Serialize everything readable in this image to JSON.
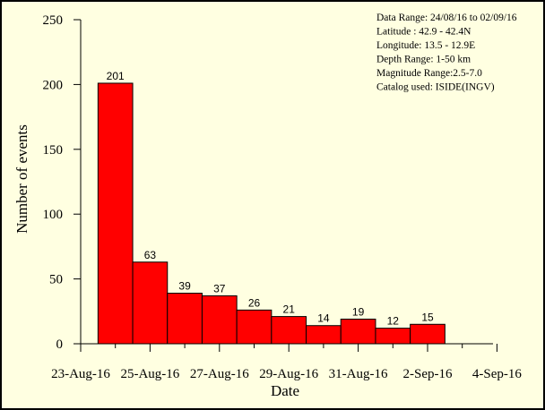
{
  "chart_data": {
    "type": "bar",
    "title": "",
    "xlabel": "Date",
    "ylabel": "Number of events",
    "ylim": [
      0,
      250
    ],
    "yticks": [
      0,
      50,
      100,
      150,
      200,
      250
    ],
    "xticks": [
      "23-Aug-16",
      "25-Aug-16",
      "27-Aug-16",
      "29-Aug-16",
      "31-Aug-16",
      "2-Sep-16",
      "4-Sep-16"
    ],
    "categories": [
      "24-Aug-16",
      "25-Aug-16",
      "26-Aug-16",
      "27-Aug-16",
      "28-Aug-16",
      "29-Aug-16",
      "30-Aug-16",
      "31-Aug-16",
      "1-Sep-16",
      "2-Sep-16"
    ],
    "values": [
      201,
      63,
      39,
      37,
      26,
      21,
      14,
      19,
      12,
      15
    ],
    "data_labels": [
      "201",
      "63",
      "39",
      "37",
      "26",
      "21",
      "14",
      "19",
      "12",
      "15"
    ],
    "bar_color": "#ff0000",
    "grid": false,
    "legend": "none"
  },
  "info_box": {
    "lines": [
      "Data Range: 24/08/16 to 02/09/16",
      "Latitude : 42.9 - 42.4N",
      "Longitude: 13.5 - 12.9E",
      "Depth Range: 1-50 km",
      "Magnitude Range:2.5-7.0",
      "Catalog used: ISIDE(INGV)"
    ]
  },
  "colors": {
    "background": "#ffffe1",
    "bar_fill": "#ff0000",
    "bar_stroke": "#000000"
  }
}
